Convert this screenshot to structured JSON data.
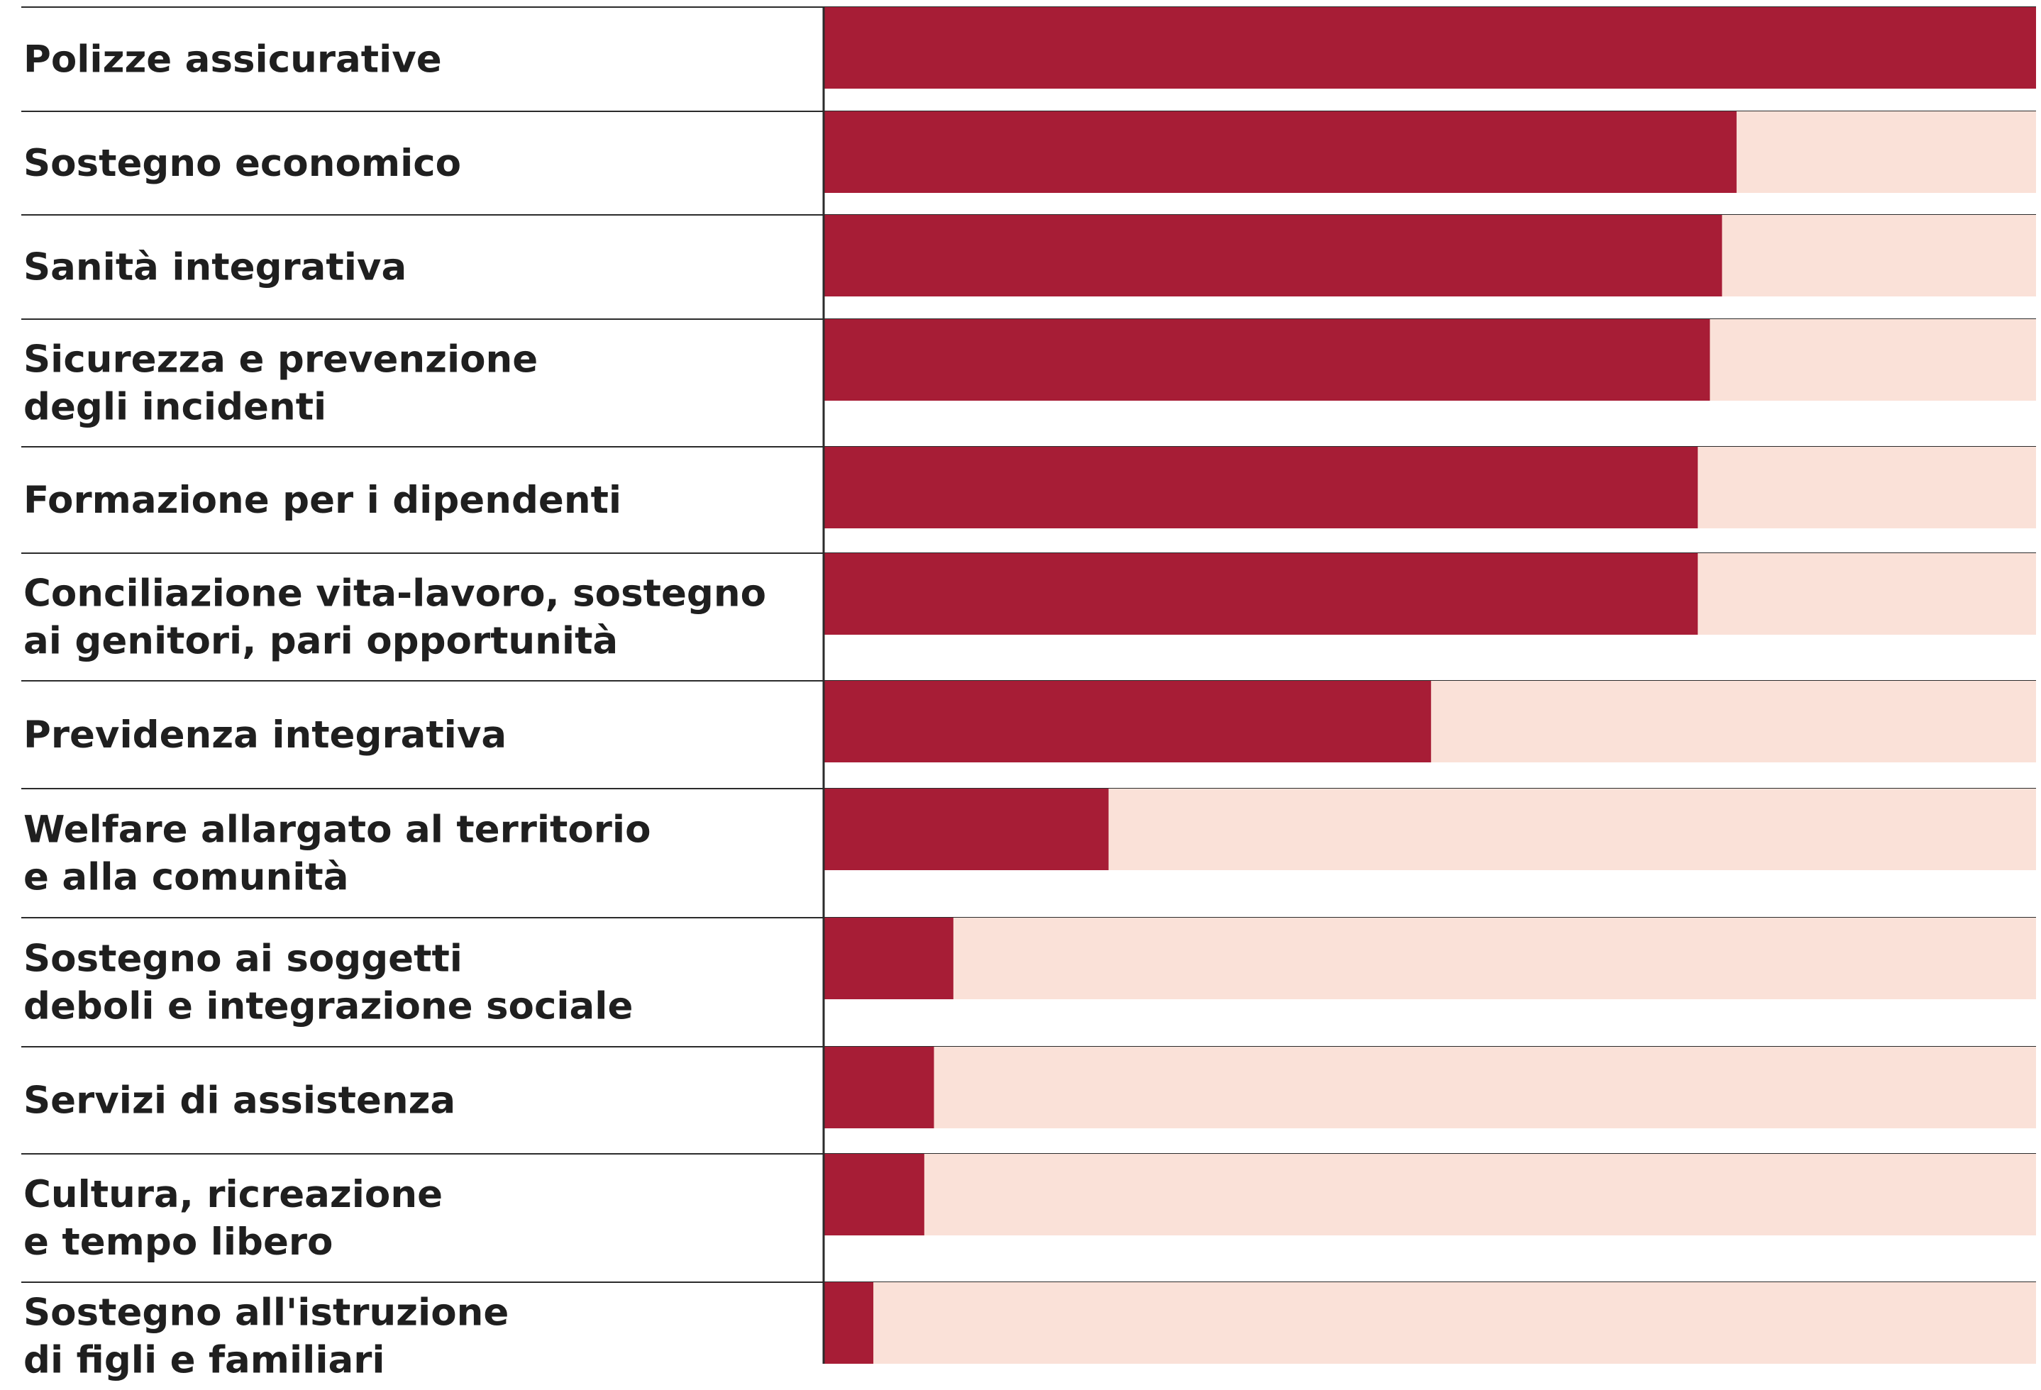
{
  "colors": {
    "bar": "#a71d36",
    "track": "#fae1d8",
    "rule": "#2b2b2b",
    "label": "#1f1f1f"
  },
  "chart_data": {
    "type": "bar",
    "orientation": "horizontal",
    "title": "",
    "xlabel": "",
    "ylabel": "",
    "xlim": [
      0,
      100
    ],
    "categories": [
      [
        "Polizze assicurative"
      ],
      [
        "Sostegno economico"
      ],
      [
        "Sanità integrativa"
      ],
      [
        "Sicurezza e prevenzione",
        "degli incidenti"
      ],
      [
        "Formazione per i dipendenti"
      ],
      [
        "Conciliazione vita-lavoro, sostegno",
        "ai genitori, pari opportunità"
      ],
      [
        "Previdenza integrativa"
      ],
      [
        "Welfare allargato al territorio",
        "e alla comunità"
      ],
      [
        "Sostegno ai soggetti",
        "deboli e integrazione sociale"
      ],
      [
        "Servizi di assistenza"
      ],
      [
        "Cultura, ricreazione",
        "e tempo libero"
      ],
      [
        "Sostegno all'istruzione",
        "di figli e familiari"
      ]
    ],
    "values": [
      100,
      75.3,
      74.1,
      73.1,
      72.1,
      72.1,
      50.1,
      23.5,
      10.7,
      9.1,
      8.3,
      4.1
    ]
  }
}
